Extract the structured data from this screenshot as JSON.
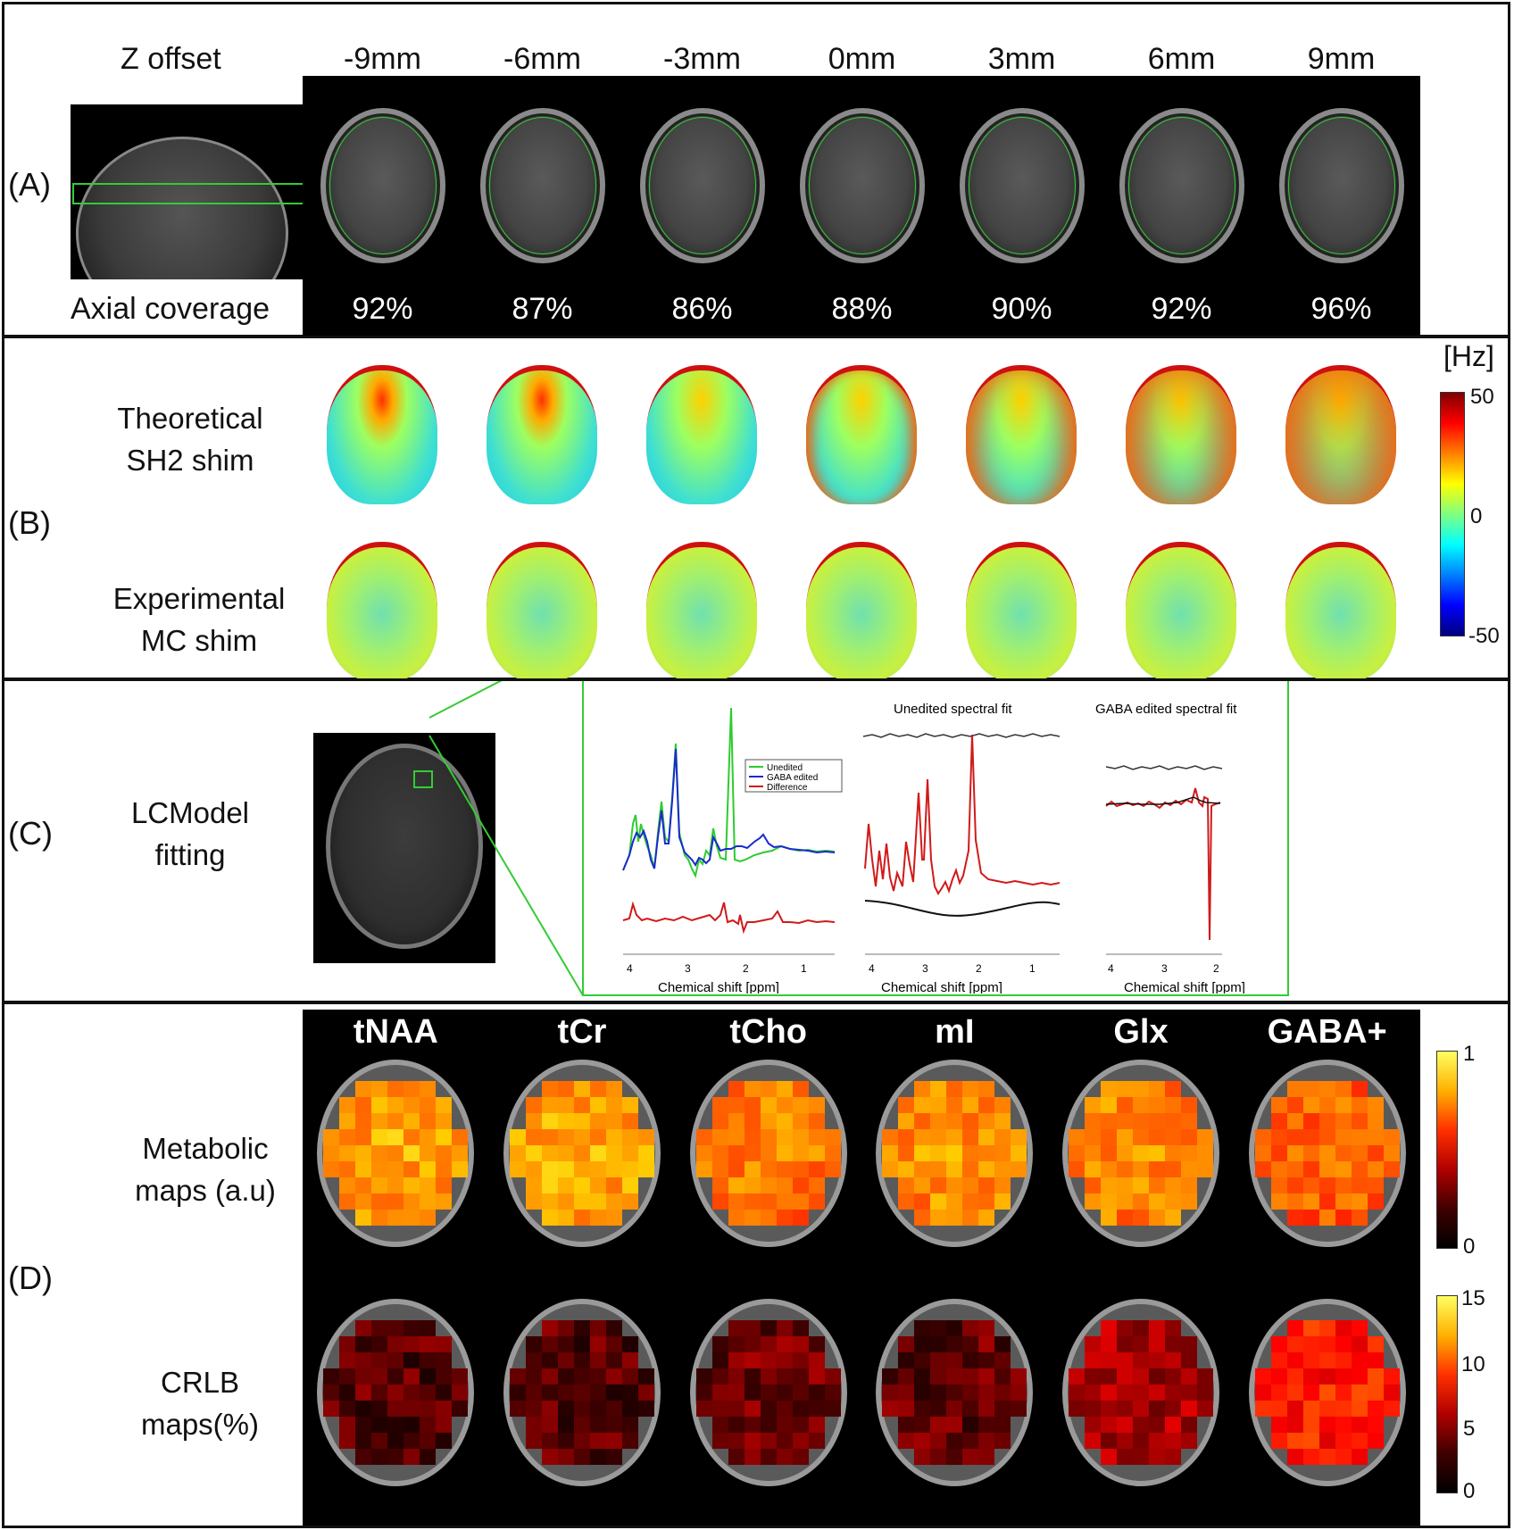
{
  "panel_a": {
    "label": "(A)",
    "z_offset_label": "Z offset",
    "axial_coverage_label": "Axial coverage",
    "offsets": [
      "-9mm",
      "-6mm",
      "-3mm",
      "0mm",
      "3mm",
      "6mm",
      "9mm"
    ],
    "coverage": [
      "92%",
      "87%",
      "86%",
      "88%",
      "90%",
      "92%",
      "96%"
    ]
  },
  "panel_b": {
    "label": "(B)",
    "row1_line1": "Theoretical",
    "row1_line2": "SH2 shim",
    "row2_line1": "Experimental",
    "row2_line2": "MC shim",
    "colorbar_unit": "[Hz]",
    "colorbar_ticks": [
      "50",
      "0",
      "-50"
    ],
    "colorbar_range": [
      -50,
      50
    ]
  },
  "panel_c": {
    "label": "(C)",
    "line1": "LCModel",
    "line2": "fitting",
    "spectra_xlabel": "Chemical shift [ppm]",
    "unedited_fit_title": "Unedited spectral fit",
    "gaba_fit_title": "GABA edited spectral fit",
    "legend": [
      "Unedited",
      "GABA edited",
      "Difference"
    ],
    "legend_colors": [
      "#2ecc2e",
      "#1a2ad0",
      "#d01a1a"
    ],
    "ticks_full": [
      "4",
      "3",
      "2",
      "1"
    ],
    "ticks_gaba": [
      "4",
      "3",
      "2"
    ]
  },
  "panel_d": {
    "label": "(D)",
    "metabolites": [
      "tNAA",
      "tCr",
      "tCho",
      "mI",
      "Glx",
      "GABA+"
    ],
    "row1_line1": "Metabolic",
    "row1_line2": "maps (a.u)",
    "row2_line1": "CRLB",
    "row2_line2": "maps(%)",
    "colorbar1_ticks": [
      "1",
      "0"
    ],
    "colorbar2_ticks": [
      "15",
      "10",
      "5",
      "0"
    ]
  }
}
